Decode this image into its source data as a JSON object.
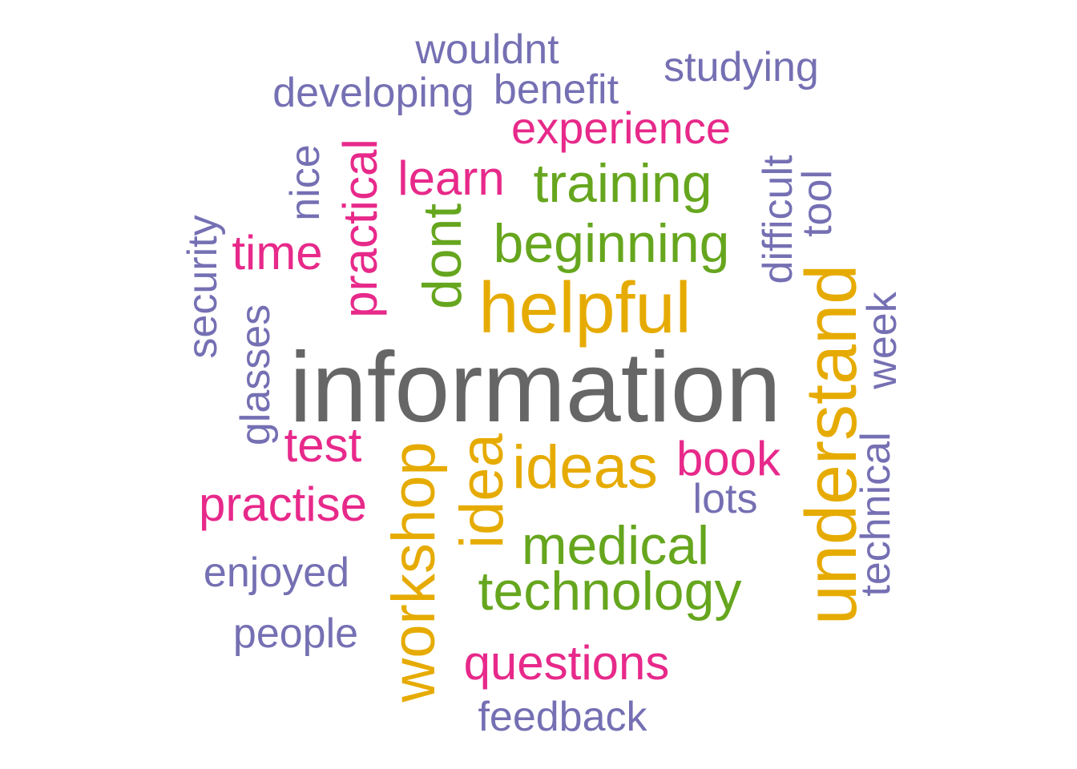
{
  "palette": {
    "purple": "#7570b3",
    "pink": "#e7298a",
    "green": "#66a61e",
    "gold": "#e6ab02",
    "gray": "#666666"
  },
  "words": [
    {
      "text": "wouldnt",
      "color": "purple"
    },
    {
      "text": "studying",
      "color": "purple"
    },
    {
      "text": "developing",
      "color": "purple"
    },
    {
      "text": "benefit",
      "color": "purple"
    },
    {
      "text": "experience",
      "color": "pink"
    },
    {
      "text": "learn",
      "color": "pink"
    },
    {
      "text": "training",
      "color": "green"
    },
    {
      "text": "nice",
      "color": "purple"
    },
    {
      "text": "practical",
      "color": "pink"
    },
    {
      "text": "difficult",
      "color": "purple"
    },
    {
      "text": "tool",
      "color": "purple"
    },
    {
      "text": "security",
      "color": "purple"
    },
    {
      "text": "time",
      "color": "pink"
    },
    {
      "text": "dont",
      "color": "green"
    },
    {
      "text": "beginning",
      "color": "green"
    },
    {
      "text": "helpful",
      "color": "gold"
    },
    {
      "text": "understand",
      "color": "gold"
    },
    {
      "text": "glasses",
      "color": "purple"
    },
    {
      "text": "week",
      "color": "purple"
    },
    {
      "text": "information",
      "color": "gray"
    },
    {
      "text": "test",
      "color": "pink"
    },
    {
      "text": "workshop",
      "color": "gold"
    },
    {
      "text": "idea",
      "color": "gold"
    },
    {
      "text": "ideas",
      "color": "gold"
    },
    {
      "text": "book",
      "color": "pink"
    },
    {
      "text": "technical",
      "color": "purple"
    },
    {
      "text": "practise",
      "color": "pink"
    },
    {
      "text": "lots",
      "color": "purple"
    },
    {
      "text": "medical",
      "color": "green"
    },
    {
      "text": "enjoyed",
      "color": "purple"
    },
    {
      "text": "technology",
      "color": "green"
    },
    {
      "text": "people",
      "color": "purple"
    },
    {
      "text": "questions",
      "color": "pink"
    },
    {
      "text": "feedback",
      "color": "purple"
    }
  ]
}
